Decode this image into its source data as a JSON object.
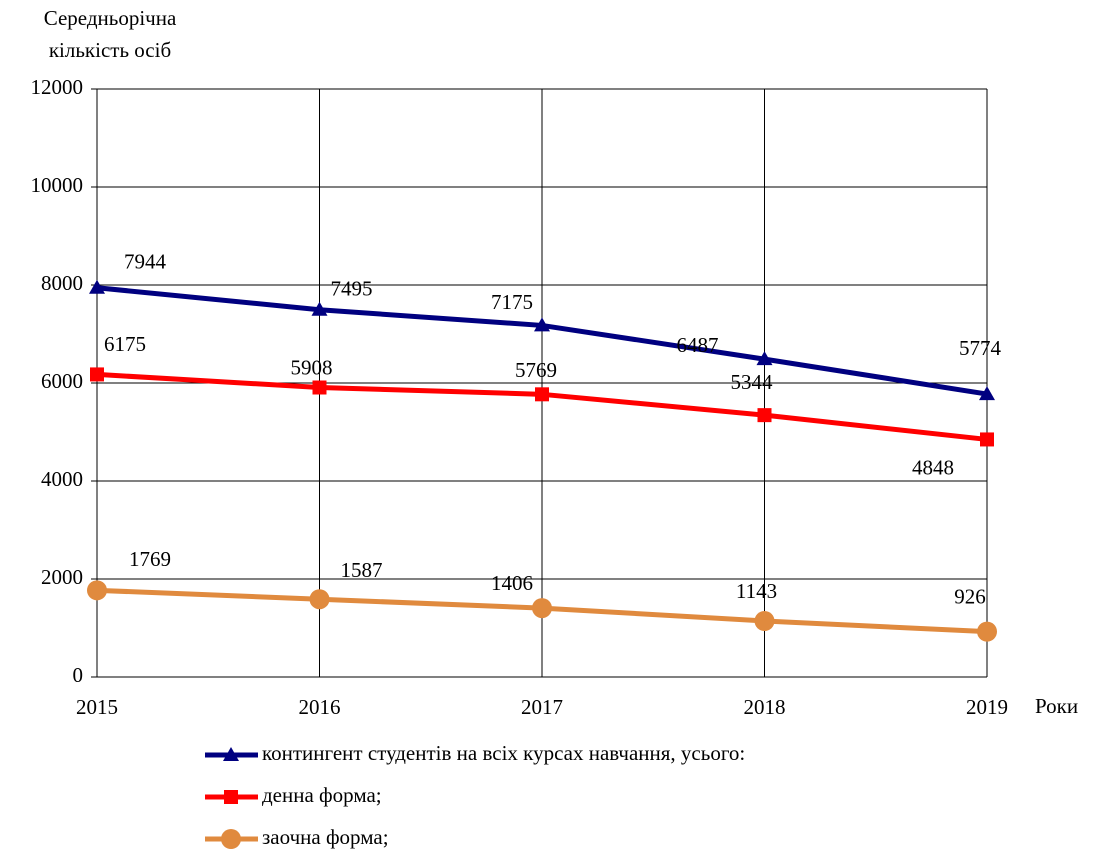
{
  "chart_data": {
    "type": "line",
    "y_label": [
      "Середньорічна",
      "кількість осіб"
    ],
    "x_label": "Роки",
    "categories": [
      "2015",
      "2016",
      "2017",
      "2018",
      "2019"
    ],
    "series": [
      {
        "name": "контингент студентів на всіх курсах навчання, усього:",
        "color": "#000080",
        "marker": "triangle",
        "values": [
          7944,
          7495,
          7175,
          6487,
          5774
        ]
      },
      {
        "name": "денна форма;",
        "color": "#ff0000",
        "marker": "square",
        "values": [
          6175,
          5908,
          5769,
          5344,
          4848
        ]
      },
      {
        "name": "заочна форма;",
        "color": "#e08a3e",
        "marker": "circle",
        "values": [
          1769,
          1587,
          1406,
          1143,
          926
        ]
      }
    ],
    "ylim": [
      0,
      12000
    ],
    "yticks": [
      0,
      2000,
      4000,
      6000,
      8000,
      10000,
      12000
    ],
    "grid": true
  }
}
